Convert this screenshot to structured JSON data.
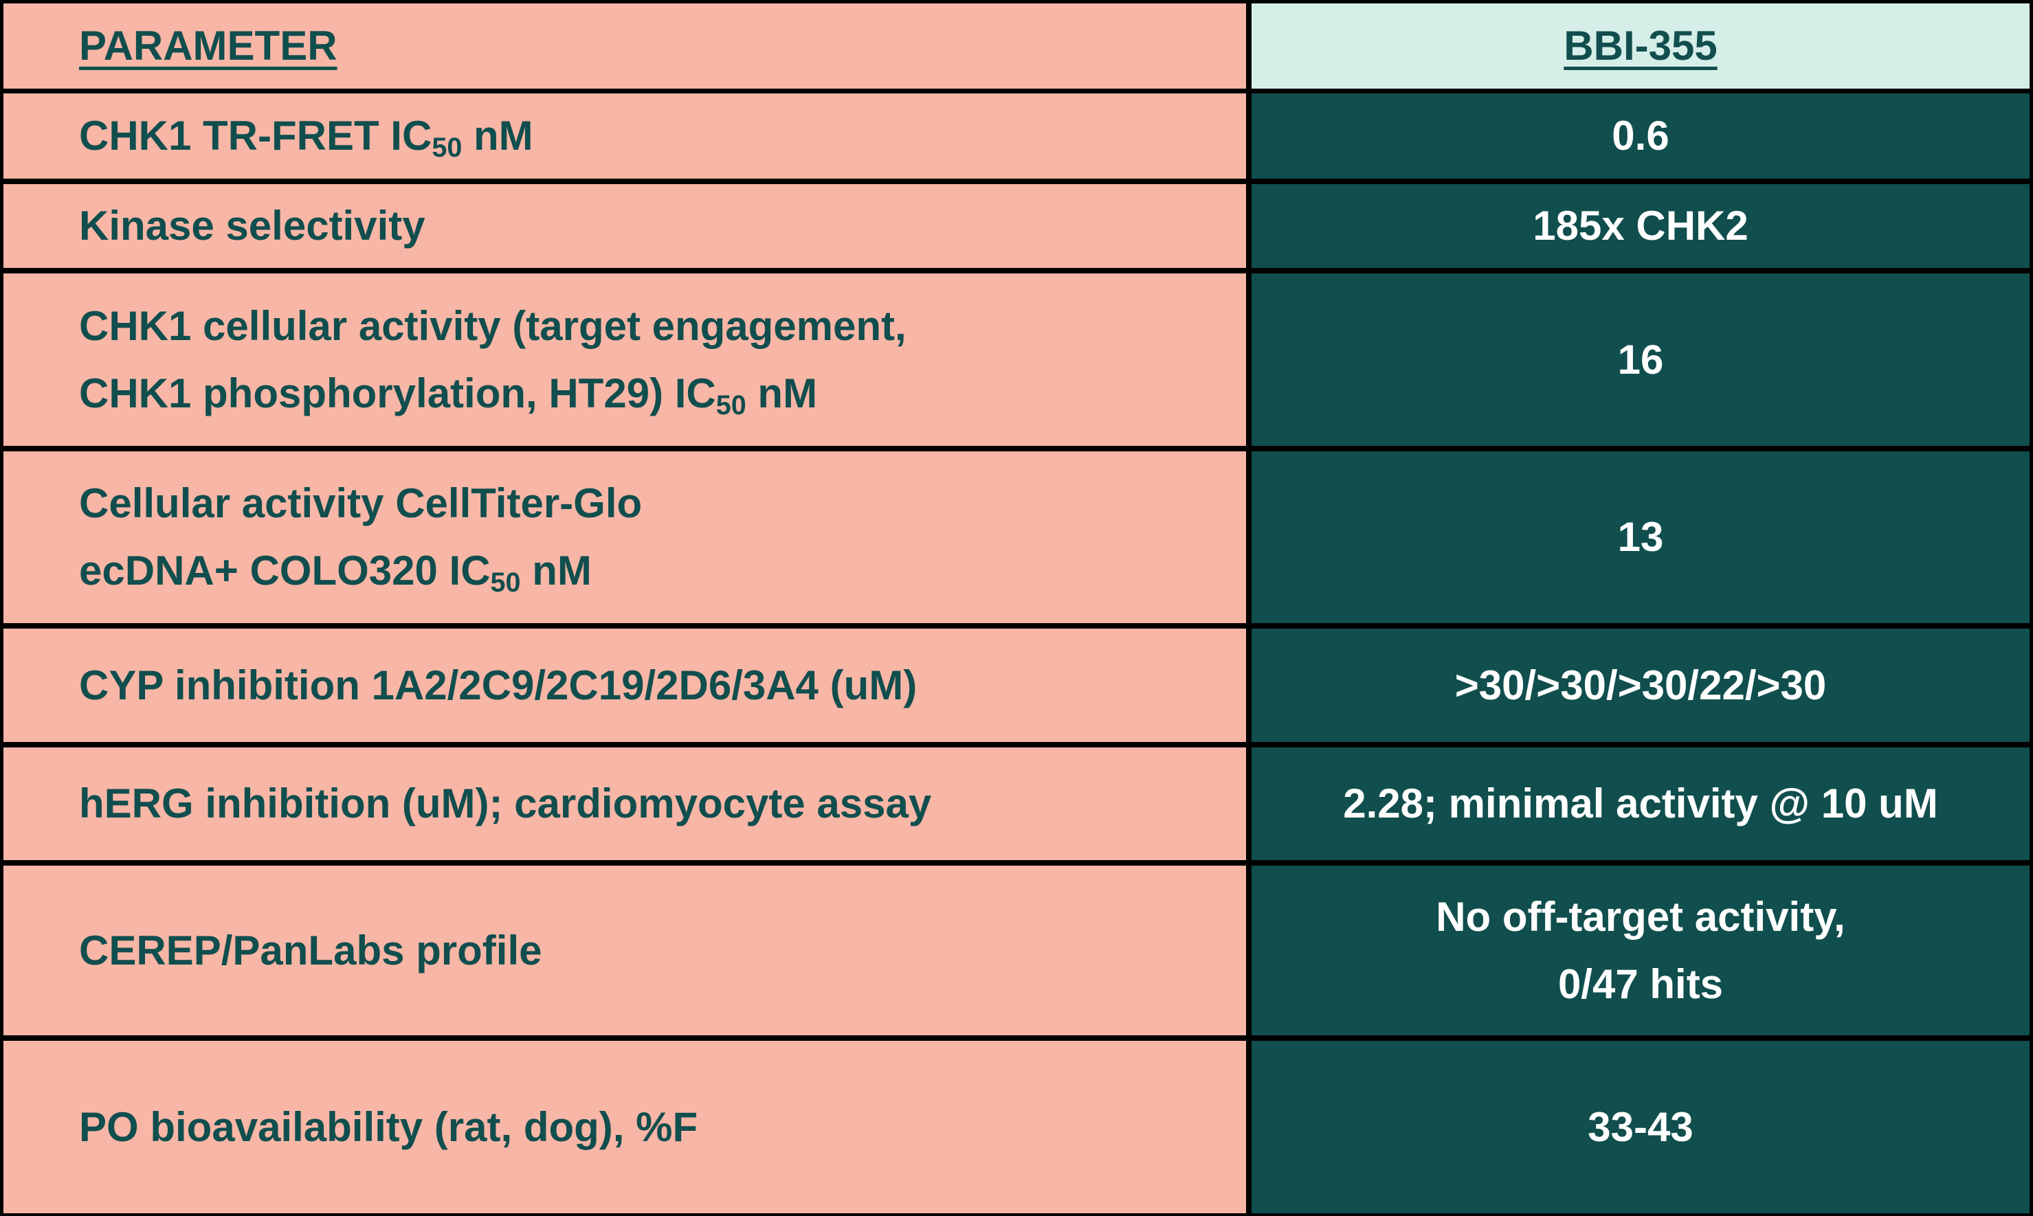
{
  "table": {
    "header": [
      "PARAMETER",
      "BBI-355"
    ],
    "rows": [
      {
        "parameter": [
          [
            "CHK1 TR-FRET IC",
            {
              "sub": "50"
            },
            " nM"
          ]
        ],
        "value": [
          [
            "0.6"
          ]
        ]
      },
      {
        "parameter": [
          [
            "Kinase selectivity"
          ]
        ],
        "value": [
          [
            "185x CHK2"
          ]
        ]
      },
      {
        "parameter": [
          [
            "CHK1 cellular activity (target engagement,"
          ],
          [
            "CHK1 phosphorylation, HT29) IC",
            {
              "sub": "50"
            },
            " nM"
          ]
        ],
        "value": [
          [
            "16"
          ]
        ]
      },
      {
        "parameter": [
          [
            "Cellular activity CellTiter-Glo"
          ],
          [
            "ecDNA+ COLO320 IC",
            {
              "sub": "50"
            },
            " nM"
          ]
        ],
        "value": [
          [
            "13"
          ]
        ]
      },
      {
        "parameter": [
          [
            "CYP inhibition 1A2/2C9/2C19/2D6/3A4 (uM)"
          ]
        ],
        "value": [
          [
            ">30/>30/>30/22/>30"
          ]
        ]
      },
      {
        "parameter": [
          [
            "hERG inhibition (uM); cardiomyocyte assay"
          ]
        ],
        "value": [
          [
            "2.28; minimal activity @ 10 uM"
          ]
        ]
      },
      {
        "parameter": [
          [
            "CEREP/PanLabs profile"
          ]
        ],
        "value": [
          [
            "No off-target activity,"
          ],
          [
            "0/47 hits"
          ]
        ]
      },
      {
        "parameter": [
          [
            "PO bioavailability (rat, dog), %F"
          ]
        ],
        "value": [
          [
            "33-43"
          ]
        ]
      }
    ]
  }
}
